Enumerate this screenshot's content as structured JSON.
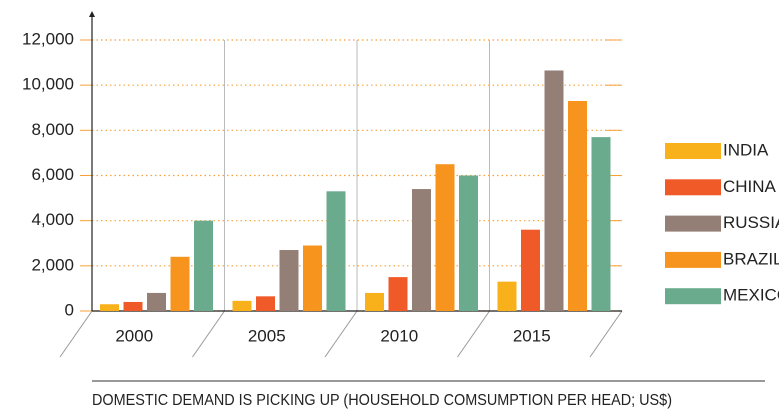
{
  "chart_data": {
    "type": "bar",
    "title": "DOMESTIC DEMAND IS PICKING UP (HOUSEHOLD COMSUMPTION PER HEAD; US$)",
    "categories": [
      "2000",
      "2005",
      "2010",
      "2015"
    ],
    "series": [
      {
        "name": "INDIA",
        "color": "#f9b11b",
        "values": [
          300,
          450,
          800,
          1300
        ]
      },
      {
        "name": "CHINA",
        "color": "#f05a28",
        "values": [
          400,
          650,
          1500,
          3600
        ]
      },
      {
        "name": "RUSSIA",
        "color": "#947f76",
        "values": [
          800,
          2700,
          5400,
          10650
        ]
      },
      {
        "name": "BRAZIL",
        "color": "#f7941d",
        "values": [
          2400,
          2900,
          6500,
          9300
        ]
      },
      {
        "name": "MEXICO",
        "color": "#6aab8e",
        "values": [
          4000,
          5300,
          6000,
          7700
        ]
      }
    ],
    "ylim": [
      0,
      12000
    ],
    "yticks": [
      0,
      {
        "value": 2000,
        "label": "2,000"
      },
      {
        "value": 4000,
        "label": "4,000"
      },
      {
        "value": 6000,
        "label": "6,000"
      },
      {
        "value": 8000,
        "label": "8,000"
      },
      {
        "value": 10000,
        "label": "10,000"
      },
      {
        "value": 12000,
        "label": "12,000"
      }
    ],
    "grid": true,
    "legend": "right"
  }
}
